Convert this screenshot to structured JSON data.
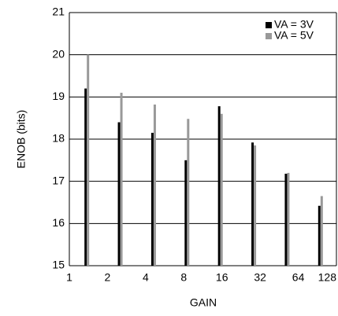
{
  "chart_data": {
    "type": "bar",
    "categories": [
      "1",
      "2",
      "4",
      "8",
      "16",
      "32",
      "64",
      "128"
    ],
    "series": [
      {
        "name": "VA = 3V",
        "color": "#000000",
        "values": [
          19.2,
          18.4,
          18.15,
          17.5,
          18.78,
          17.92,
          17.18,
          16.42
        ]
      },
      {
        "name": "VA = 5V",
        "color": "#999999",
        "values": [
          20.0,
          19.1,
          18.82,
          18.48,
          18.6,
          17.85,
          17.2,
          16.65
        ]
      }
    ],
    "xlabel": "GAIN",
    "ylabel": "ENOB (bits)",
    "ylim": [
      15,
      21
    ],
    "yticks": [
      15,
      16,
      17,
      18,
      19,
      20,
      21
    ],
    "grid": true,
    "legend": "top-right"
  }
}
